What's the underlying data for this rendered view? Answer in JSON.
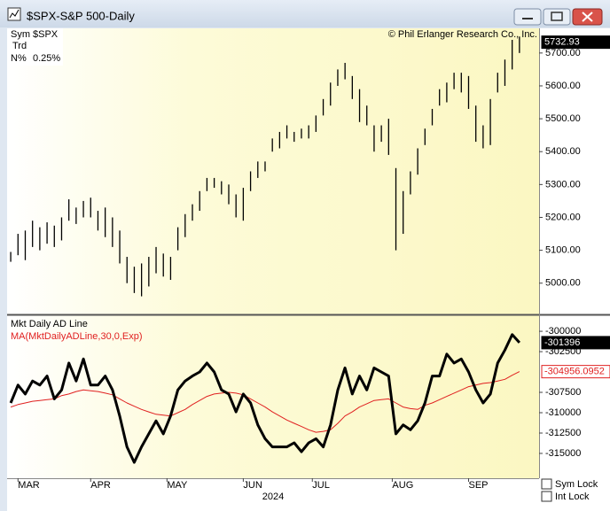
{
  "window": {
    "title": "$SPX-S&P 500-Daily"
  },
  "info": {
    "sym_label": "Sym",
    "sym": "$SPX",
    "trd": "Trd",
    "n_label": "N%",
    "n": "0.25%"
  },
  "copyright": "© Phil Erlanger Research Co., Inc.",
  "controls": {
    "sym_lock": "Sym Lock",
    "int_lock": "Int Lock"
  },
  "chart_data": [
    {
      "type": "ohlc",
      "color": "#000000",
      "xlim": [
        -0.5,
        72.7
      ],
      "ylim": [
        4905,
        5775
      ],
      "yticks": [
        {
          "value": 5000,
          "label": "5000.00"
        },
        {
          "value": 5100,
          "label": "5100.00"
        },
        {
          "value": 5200,
          "label": "5200.00"
        },
        {
          "value": 5300,
          "label": "5300.00"
        },
        {
          "value": 5400,
          "label": "5400.00"
        },
        {
          "value": 5500,
          "label": "5500.00"
        },
        {
          "value": 5600,
          "label": "5600.00"
        },
        {
          "value": 5700,
          "label": "5700.00"
        }
      ],
      "last": 5732.93,
      "high": [
        5095,
        5150,
        5160,
        5190,
        5170,
        5185,
        5175,
        5200,
        5255,
        5230,
        5250,
        5260,
        5220,
        5230,
        5200,
        5160,
        5080,
        5050,
        5060,
        5080,
        5110,
        5090,
        5080,
        5170,
        5210,
        5240,
        5280,
        5320,
        5320,
        5310,
        5300,
        5270,
        5290,
        5340,
        5370,
        5370,
        5440,
        5460,
        5480,
        5460,
        5470,
        5480,
        5510,
        5560,
        5610,
        5650,
        5670,
        5630,
        5590,
        5540,
        5480,
        5480,
        5500,
        5350,
        5280,
        5340,
        5410,
        5470,
        5530,
        5590,
        5610,
        5640,
        5640,
        5630,
        5540,
        5480,
        5560,
        5640,
        5680,
        5740,
        5750
      ],
      "low": [
        5065,
        5085,
        5070,
        5110,
        5100,
        5120,
        5110,
        5130,
        5190,
        5180,
        5200,
        5200,
        5160,
        5140,
        5110,
        5060,
        5000,
        4970,
        4960,
        4990,
        5030,
        5020,
        5010,
        5100,
        5140,
        5190,
        5220,
        5280,
        5290,
        5270,
        5240,
        5200,
        5190,
        5280,
        5320,
        5340,
        5400,
        5410,
        5440,
        5430,
        5440,
        5440,
        5460,
        5510,
        5540,
        5600,
        5620,
        5560,
        5490,
        5480,
        5400,
        5430,
        5390,
        5100,
        5150,
        5270,
        5330,
        5420,
        5480,
        5540,
        5550,
        5590,
        5580,
        5530,
        5430,
        5410,
        5420,
        5580,
        5600,
        5650,
        5700
      ]
    },
    {
      "type": "line",
      "xlim": [
        -0.5,
        72.7
      ],
      "ylim": [
        -318050,
        -298250
      ],
      "yticks": [
        -300000,
        -302500,
        -307500,
        -310000,
        -312500,
        -315000
      ],
      "xticks": [
        {
          "value": 1,
          "label": "MAR"
        },
        {
          "value": 11,
          "label": "APR"
        },
        {
          "value": 21.5,
          "label": "MAY"
        },
        {
          "value": 32,
          "label": "JUN"
        },
        {
          "value": 41.5,
          "label": "JUL"
        },
        {
          "value": 52.5,
          "label": "AUG"
        },
        {
          "value": 63,
          "label": "SEP"
        }
      ],
      "x_label": "2024",
      "series": [
        {
          "name": "Mkt Daily AD Line",
          "color": "#000000",
          "values": [
            -308800,
            -306600,
            -307700,
            -306100,
            -306600,
            -305500,
            -308300,
            -307200,
            -303900,
            -306100,
            -303400,
            -306600,
            -306600,
            -305500,
            -307200,
            -310400,
            -314200,
            -316100,
            -314200,
            -312600,
            -311000,
            -312600,
            -310400,
            -307200,
            -306100,
            -305500,
            -305000,
            -303900,
            -305000,
            -307200,
            -307700,
            -309900,
            -307700,
            -308800,
            -311500,
            -313200,
            -314200,
            -314200,
            -314200,
            -313700,
            -314800,
            -313700,
            -313200,
            -314200,
            -311500,
            -307200,
            -304500,
            -307700,
            -305500,
            -307200,
            -304500,
            -305000,
            -305500,
            -312600,
            -311500,
            -312100,
            -311000,
            -308800,
            -305500,
            -305500,
            -302800,
            -303900,
            -303400,
            -305000,
            -307200,
            -308800,
            -307700,
            -303900,
            -302300,
            -300400,
            -301396
          ]
        },
        {
          "name": "MA(MktDailyADLine,30,0,Exp)",
          "color": "#e02020",
          "values": [
            -309300,
            -309000,
            -308800,
            -308600,
            -308500,
            -308400,
            -308300,
            -307900,
            -307700,
            -307400,
            -307200,
            -307300,
            -307400,
            -307600,
            -307800,
            -308300,
            -308800,
            -309200,
            -309600,
            -309900,
            -310200,
            -310300,
            -310400,
            -310000,
            -309600,
            -309000,
            -308500,
            -308000,
            -307700,
            -307600,
            -307500,
            -307600,
            -307800,
            -308300,
            -308800,
            -309300,
            -309900,
            -310400,
            -310900,
            -311300,
            -311700,
            -312100,
            -312400,
            -312300,
            -312100,
            -311300,
            -310400,
            -309900,
            -309300,
            -308900,
            -308500,
            -308400,
            -308300,
            -308800,
            -309300,
            -309500,
            -309600,
            -309100,
            -308800,
            -308400,
            -308000,
            -307600,
            -307200,
            -306800,
            -306600,
            -306400,
            -306300,
            -306100,
            -305900,
            -305400,
            -304956.0952
          ]
        }
      ]
    }
  ]
}
